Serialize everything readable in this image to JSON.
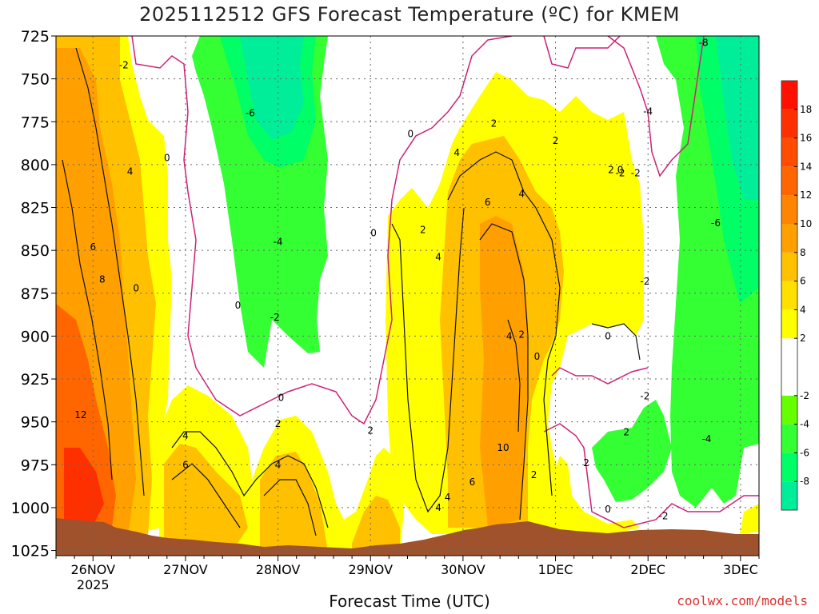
{
  "title": "2025112512 GFS Forecast Temperature (ºC) for KMEM",
  "x_axis_title": "Forecast Time (UTC)",
  "credit": "coolwx.com/models",
  "chart_data": {
    "type": "heatmap",
    "title": "2025112512 GFS Forecast Temperature (ºC) for KMEM",
    "xlabel": "Forecast Time (UTC)",
    "ylabel": "",
    "x_range_hours": [
      -12,
      216
    ],
    "x_ticks": [
      {
        "hour": 0,
        "label": "26NOV",
        "sublabel": "2025"
      },
      {
        "hour": 30,
        "label": "27NOV"
      },
      {
        "hour": 60,
        "label": "28NOV"
      },
      {
        "hour": 90,
        "label": "29NOV"
      },
      {
        "hour": 120,
        "label": "30NOV"
      },
      {
        "hour": 150,
        "label": "1DEC"
      },
      {
        "hour": 180,
        "label": "2DEC"
      },
      {
        "hour": 210,
        "label": "3DEC"
      }
    ],
    "y_levels_hpa": [
      725,
      750,
      775,
      800,
      825,
      850,
      875,
      900,
      925,
      950,
      975,
      1000,
      1025
    ],
    "y_range_hpa": [
      725,
      1028
    ],
    "y_direction": "pressure increasing downward",
    "grid": true,
    "colorbar": {
      "position": "right",
      "unit": "ºC",
      "tick_labels": [
        "-8",
        "-6",
        "-4",
        "-2",
        "2",
        "4",
        "6",
        "8",
        "10",
        "12",
        "14",
        "16",
        "18"
      ],
      "bins": [
        {
          "min": -10,
          "max": -8,
          "color": "#00ee99"
        },
        {
          "min": -8,
          "max": -6,
          "color": "#00ff66"
        },
        {
          "min": -6,
          "max": -4,
          "color": "#33ff33"
        },
        {
          "min": -4,
          "max": -2,
          "color": "#66ff00"
        },
        {
          "min": -2,
          "max": 2,
          "color": "#ffffff"
        },
        {
          "min": 2,
          "max": 4,
          "color": "#ffff00"
        },
        {
          "min": 4,
          "max": 6,
          "color": "#ffe000"
        },
        {
          "min": 6,
          "max": 8,
          "color": "#ffc000"
        },
        {
          "min": 8,
          "max": 10,
          "color": "#ffa000"
        },
        {
          "min": 10,
          "max": 12,
          "color": "#ff8400"
        },
        {
          "min": 12,
          "max": 14,
          "color": "#ff6600"
        },
        {
          "min": 14,
          "max": 16,
          "color": "#ff4c00"
        },
        {
          "min": 16,
          "max": 18,
          "color": "#ff3000"
        },
        {
          "min": 18,
          "max": 20,
          "color": "#ff1000"
        }
      ]
    },
    "contour_labels": [
      {
        "text": "-8",
        "hour": 198,
        "p": 729
      },
      {
        "text": "-2",
        "hour": 10,
        "p": 742
      },
      {
        "text": "-6",
        "hour": 51,
        "p": 770
      },
      {
        "text": "-4",
        "hour": 180,
        "p": 769
      },
      {
        "text": "-2",
        "hour": 171,
        "p": 805
      },
      {
        "text": "-2",
        "hour": 176,
        "p": 805
      },
      {
        "text": "-6",
        "hour": 202,
        "p": 834
      },
      {
        "text": "-4",
        "hour": 60,
        "p": 845
      },
      {
        "text": "-2",
        "hour": 59,
        "p": 889
      },
      {
        "text": "-2",
        "hour": 179,
        "p": 868
      },
      {
        "text": "-2",
        "hour": 179,
        "p": 935
      },
      {
        "text": "-4",
        "hour": 199,
        "p": 960
      },
      {
        "text": "-2",
        "hour": 185,
        "p": 1005
      },
      {
        "text": "0",
        "hour": 91,
        "p": 840
      },
      {
        "text": "0",
        "hour": 24,
        "p": 796
      },
      {
        "text": "0",
        "hour": 14,
        "p": 872
      },
      {
        "text": "0",
        "hour": 47,
        "p": 882
      },
      {
        "text": "0",
        "hour": 61,
        "p": 936
      },
      {
        "text": "0",
        "hour": 144,
        "p": 912
      },
      {
        "text": "0",
        "hour": 167,
        "p": 900
      },
      {
        "text": "0",
        "hour": 171,
        "p": 803
      },
      {
        "text": "0",
        "hour": 103,
        "p": 782
      },
      {
        "text": "0",
        "hour": 167,
        "p": 1001
      },
      {
        "text": "2",
        "hour": 130,
        "p": 776
      },
      {
        "text": "2",
        "hour": 150,
        "p": 786
      },
      {
        "text": "2",
        "hour": 168,
        "p": 803
      },
      {
        "text": "2",
        "hour": 107,
        "p": 838
      },
      {
        "text": "2",
        "hour": 90,
        "p": 955
      },
      {
        "text": "2",
        "hour": 60,
        "p": 951
      },
      {
        "text": "2",
        "hour": 143,
        "p": 981
      },
      {
        "text": "2",
        "hour": 139,
        "p": 899
      },
      {
        "text": "2",
        "hour": 160,
        "p": 974
      },
      {
        "text": "2",
        "hour": 173,
        "p": 956
      },
      {
        "text": "4",
        "hour": 12,
        "p": 804
      },
      {
        "text": "4",
        "hour": 30,
        "p": 958
      },
      {
        "text": "4",
        "hour": 60,
        "p": 975
      },
      {
        "text": "4",
        "hour": 118,
        "p": 793
      },
      {
        "text": "4",
        "hour": 139,
        "p": 817
      },
      {
        "text": "4",
        "hour": 135,
        "p": 900
      },
      {
        "text": "4",
        "hour": 112,
        "p": 854
      },
      {
        "text": "4",
        "hour": 112,
        "p": 1000
      },
      {
        "text": "4",
        "hour": 115,
        "p": 994
      },
      {
        "text": "6",
        "hour": 0,
        "p": 848
      },
      {
        "text": "6",
        "hour": 30,
        "p": 975
      },
      {
        "text": "6",
        "hour": 128,
        "p": 822
      },
      {
        "text": "6",
        "hour": 123,
        "p": 985
      },
      {
        "text": "8",
        "hour": 3,
        "p": 867
      },
      {
        "text": "10",
        "hour": 133,
        "p": 965
      },
      {
        "text": "12",
        "hour": -4,
        "p": 946
      }
    ],
    "ground": {
      "label": "terrain",
      "color": "#a0522d"
    }
  }
}
